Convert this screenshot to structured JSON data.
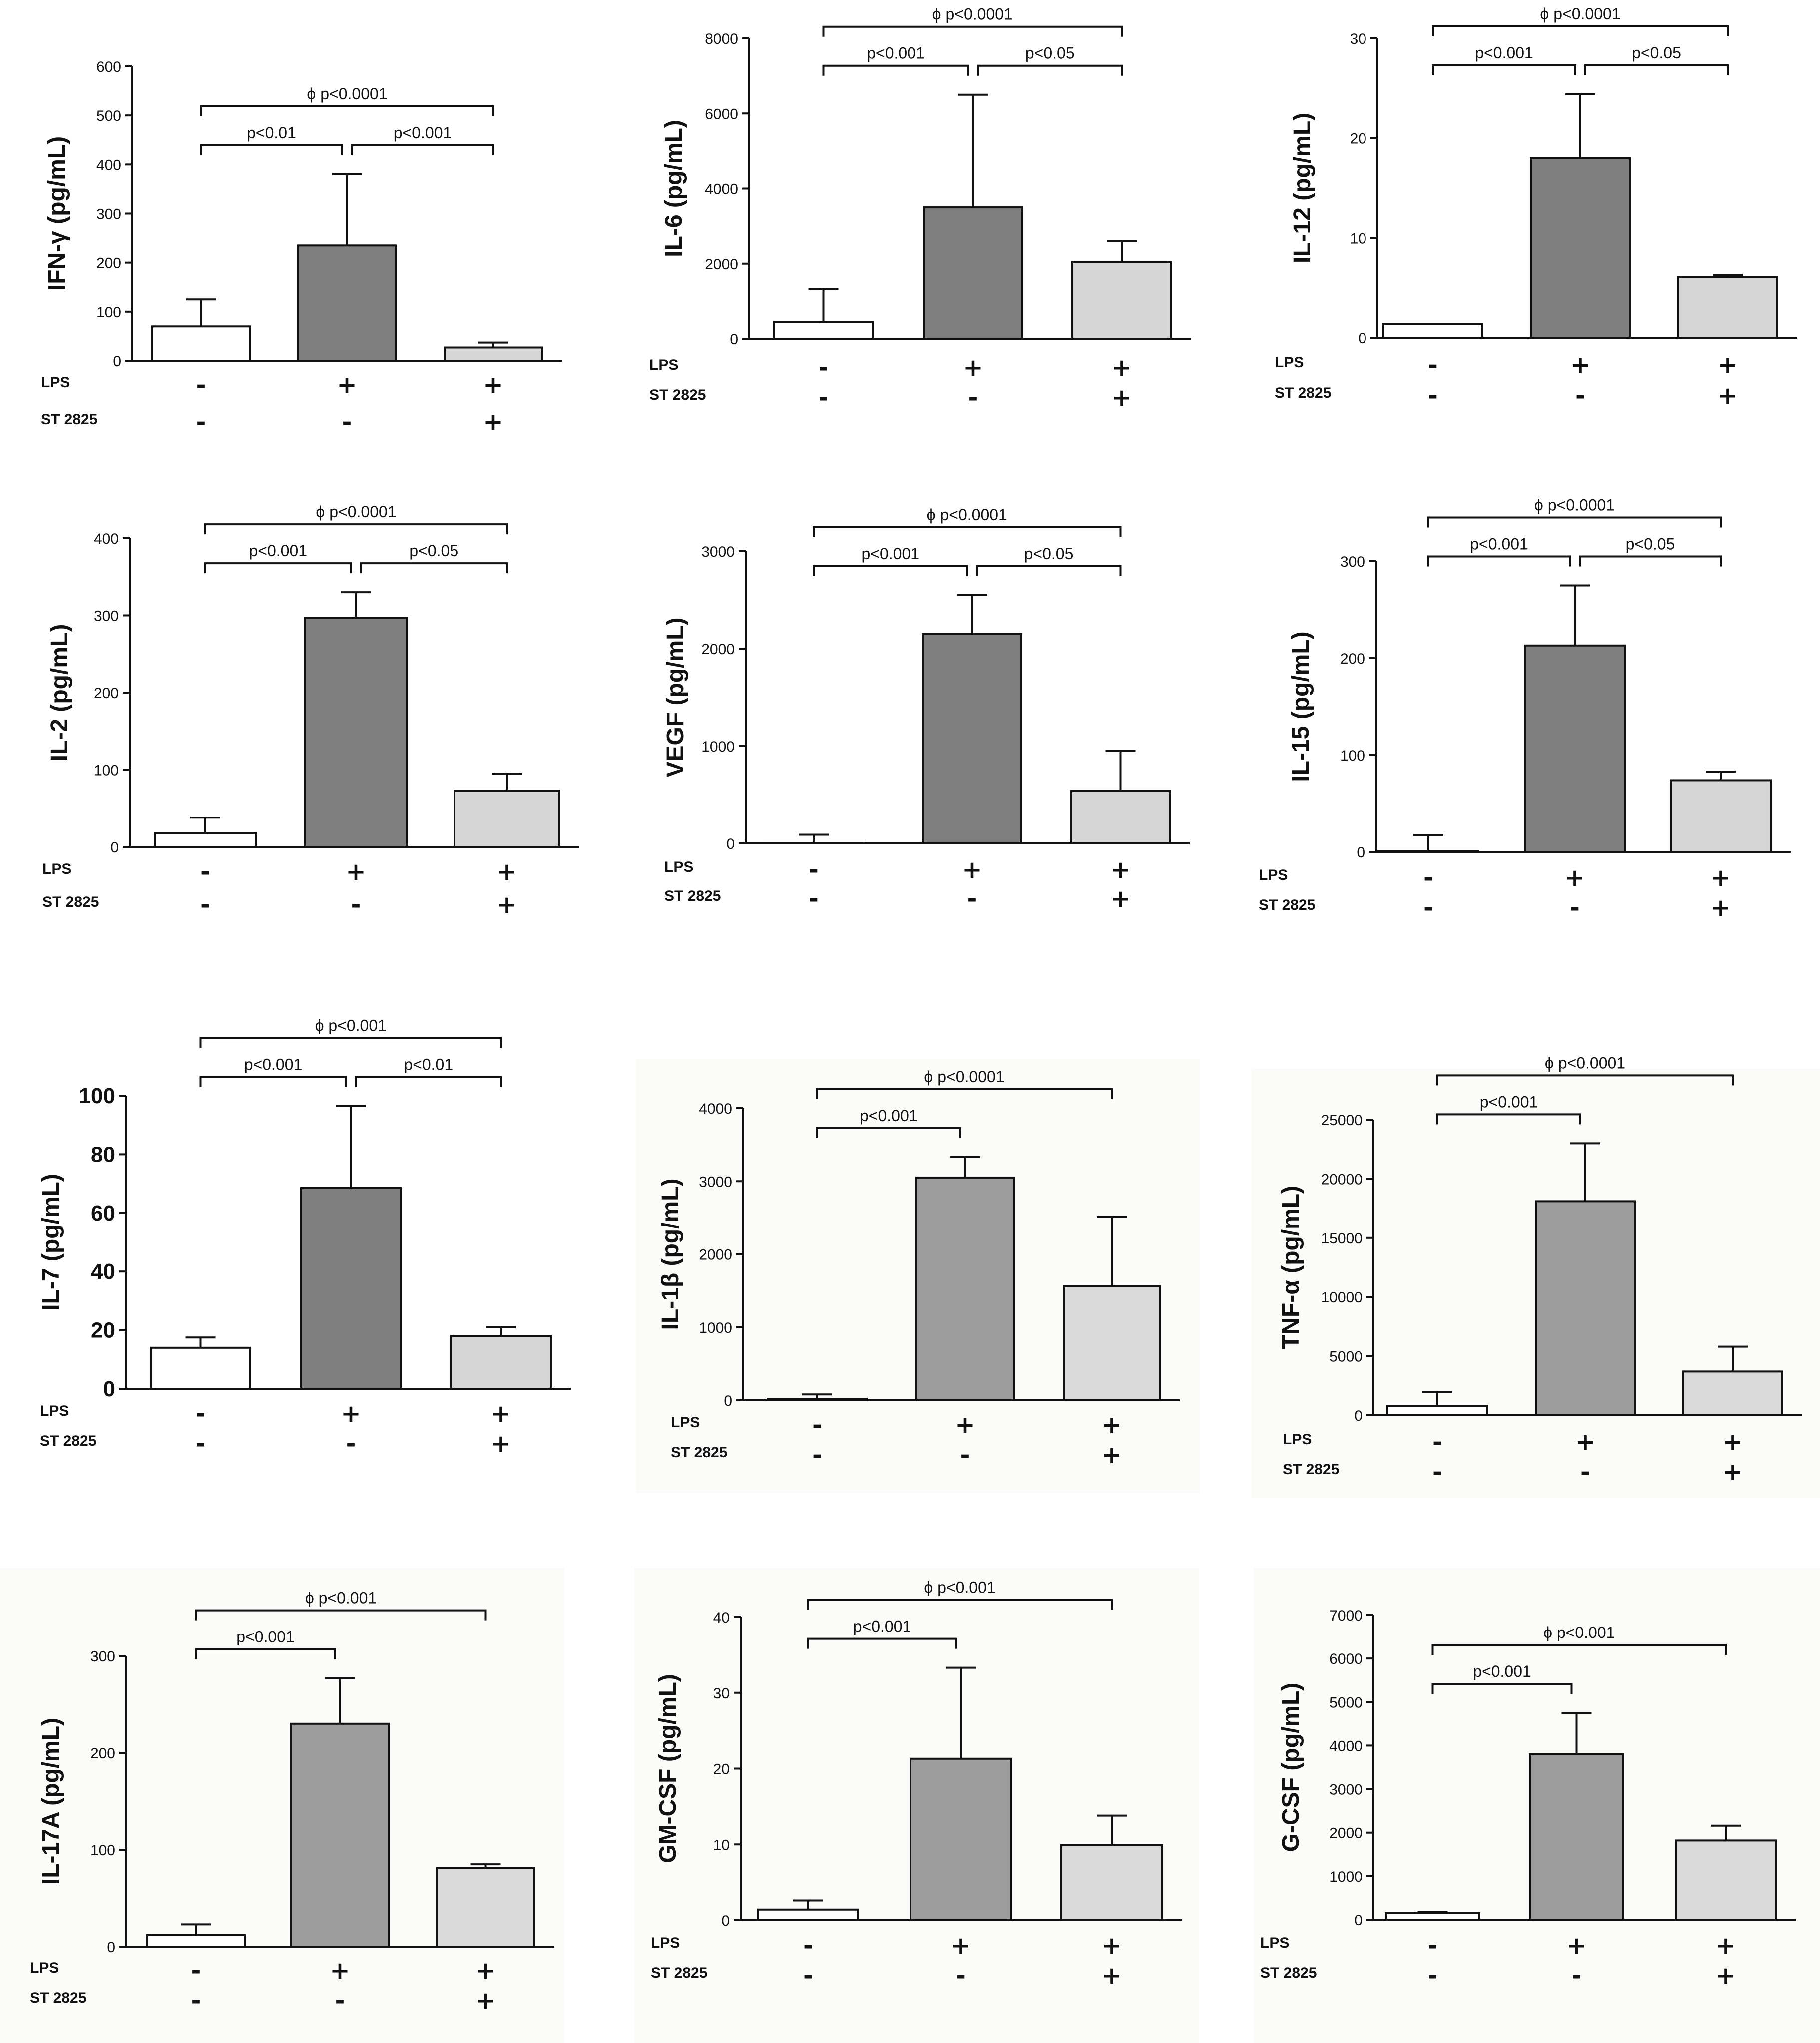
{
  "colors": {
    "control": "#ffffff",
    "lps": "#7f7f7f",
    "lps_st2825": "#d6d6d6",
    "lps_light": "#9c9c9c",
    "lps_st2825_light": "#dadada"
  },
  "condition_rows": {
    "rows": [
      "LPS",
      "ST 2825"
    ],
    "signs": [
      [
        "-",
        "-"
      ],
      [
        "+",
        "-"
      ],
      [
        "+",
        "+"
      ]
    ]
  },
  "chart_data": [
    {
      "type": "bar",
      "ylabel": "IFN-γ (pg/mL)",
      "ylim": [
        0,
        600
      ],
      "yticks": [
        0,
        100,
        200,
        300,
        400,
        500,
        600
      ],
      "values": [
        70,
        235,
        27
      ],
      "errors": [
        55,
        145,
        10
      ],
      "brackets": [
        {
          "from": 0,
          "to": 1,
          "text": "p<0.01"
        },
        {
          "from": 1,
          "to": 2,
          "text": "p<0.001"
        },
        {
          "from": 0,
          "to": 2,
          "text": "ϕ p<0.0001"
        }
      ]
    },
    {
      "type": "bar",
      "ylabel": "IL-6 (pg/mL)",
      "ylim": [
        0,
        8000
      ],
      "yticks": [
        0,
        2000,
        4000,
        6000,
        8000
      ],
      "values": [
        450,
        3500,
        2050
      ],
      "errors": [
        870,
        3000,
        550
      ],
      "brackets": [
        {
          "from": 0,
          "to": 1,
          "text": "p<0.001"
        },
        {
          "from": 1,
          "to": 2,
          "text": "p<0.05"
        },
        {
          "from": 0,
          "to": 2,
          "text": "ϕ p<0.0001"
        }
      ]
    },
    {
      "type": "bar",
      "ylabel": "IL-12 (pg/mL)",
      "ylim": [
        0,
        30
      ],
      "yticks": [
        0,
        10,
        20,
        30
      ],
      "values": [
        1.4,
        18,
        6.1
      ],
      "errors": [
        0,
        6.4,
        0.2
      ],
      "brackets": [
        {
          "from": 0,
          "to": 1,
          "text": "p<0.001"
        },
        {
          "from": 1,
          "to": 2,
          "text": "p<0.05"
        },
        {
          "from": 0,
          "to": 2,
          "text": "ϕ p<0.0001"
        }
      ]
    },
    {
      "type": "bar",
      "ylabel": "IL-2 (pg/mL)",
      "ylim": [
        0,
        400
      ],
      "yticks": [
        0,
        100,
        200,
        300,
        400
      ],
      "values": [
        18,
        297,
        73
      ],
      "errors": [
        20,
        33,
        22
      ],
      "brackets": [
        {
          "from": 0,
          "to": 1,
          "text": "p<0.001"
        },
        {
          "from": 1,
          "to": 2,
          "text": "p<0.05"
        },
        {
          "from": 0,
          "to": 2,
          "text": "ϕ p<0.0001"
        }
      ]
    },
    {
      "type": "bar",
      "ylabel": "VEGF (pg/mL)",
      "ylim": [
        0,
        3000
      ],
      "yticks": [
        0,
        1000,
        2000,
        3000
      ],
      "values": [
        5,
        2150,
        540
      ],
      "errors": [
        85,
        400,
        410
      ],
      "brackets": [
        {
          "from": 0,
          "to": 1,
          "text": "p<0.001"
        },
        {
          "from": 1,
          "to": 2,
          "text": "p<0.05"
        },
        {
          "from": 0,
          "to": 2,
          "text": "ϕ p<0.0001"
        }
      ]
    },
    {
      "type": "bar",
      "ylabel": "IL-15 (pg/mL)",
      "ylim": [
        0,
        300
      ],
      "yticks": [
        0,
        100,
        200,
        300
      ],
      "values": [
        1,
        213,
        74
      ],
      "errors": [
        16,
        62,
        9
      ],
      "brackets": [
        {
          "from": 0,
          "to": 1,
          "text": "p<0.001"
        },
        {
          "from": 1,
          "to": 2,
          "text": "p<0.05"
        },
        {
          "from": 0,
          "to": 2,
          "text": "ϕ p<0.0001"
        }
      ]
    },
    {
      "type": "bar",
      "ylabel": "IL-7 (pg/mL)",
      "ylim": [
        0,
        100
      ],
      "yticks": [
        0,
        20,
        40,
        60,
        80,
        100
      ],
      "values": [
        14,
        68.5,
        18
      ],
      "errors": [
        3.5,
        28,
        3
      ],
      "brackets": [
        {
          "from": 0,
          "to": 1,
          "text": "p<0.001"
        },
        {
          "from": 1,
          "to": 2,
          "text": "p<0.01"
        },
        {
          "from": 0,
          "to": 2,
          "text": "ϕ p<0.001"
        }
      ]
    },
    {
      "type": "bar",
      "ylabel": "IL-1β (pg/mL)",
      "ylim": [
        0,
        4000
      ],
      "yticks": [
        0,
        1000,
        2000,
        3000,
        4000
      ],
      "values": [
        20,
        3050,
        1560
      ],
      "errors": [
        60,
        280,
        950
      ],
      "brackets": [
        {
          "from": 0,
          "to": 1,
          "text": "p<0.001"
        },
        {
          "from": 0,
          "to": 2,
          "text": "ϕ p<0.0001"
        }
      ]
    },
    {
      "type": "bar",
      "ylabel": "TNF-α (pg/mL)",
      "ylim": [
        0,
        25000
      ],
      "yticks": [
        0,
        5000,
        10000,
        15000,
        20000,
        25000
      ],
      "values": [
        800,
        18100,
        3700
      ],
      "errors": [
        1150,
        4900,
        2100
      ],
      "brackets": [
        {
          "from": 0,
          "to": 1,
          "text": "p<0.001"
        },
        {
          "from": 0,
          "to": 2,
          "text": "ϕ p<0.0001"
        }
      ]
    },
    {
      "type": "bar",
      "ylabel": "IL-17A (pg/mL)",
      "ylim": [
        0,
        300
      ],
      "yticks": [
        0,
        100,
        200,
        300
      ],
      "values": [
        12,
        230,
        81
      ],
      "errors": [
        11,
        47,
        4
      ],
      "brackets": [
        {
          "from": 0,
          "to": 1,
          "text": "p<0.001"
        },
        {
          "from": 0,
          "to": 2,
          "text": "ϕ p<0.001"
        }
      ]
    },
    {
      "type": "bar",
      "ylabel": "GM-CSF (pg/mL)",
      "ylim": [
        0,
        40
      ],
      "yticks": [
        0,
        10,
        20,
        30,
        40
      ],
      "values": [
        1.4,
        21.3,
        9.9
      ],
      "errors": [
        1.2,
        12,
        3.9
      ],
      "brackets": [
        {
          "from": 0,
          "to": 1,
          "text": "p<0.001"
        },
        {
          "from": 0,
          "to": 2,
          "text": "ϕ p<0.001"
        }
      ]
    },
    {
      "type": "bar",
      "ylabel": "G-CSF (pg/mL)",
      "ylim": [
        0,
        7000
      ],
      "yticks": [
        0,
        1000,
        2000,
        3000,
        4000,
        5000,
        6000,
        7000
      ],
      "values": [
        150,
        3800,
        1820
      ],
      "errors": [
        30,
        950,
        340
      ],
      "brackets": [
        {
          "from": 0,
          "to": 1,
          "text": "p<0.001"
        },
        {
          "from": 0,
          "to": 2,
          "text": "ϕ p<0.001"
        }
      ]
    }
  ]
}
